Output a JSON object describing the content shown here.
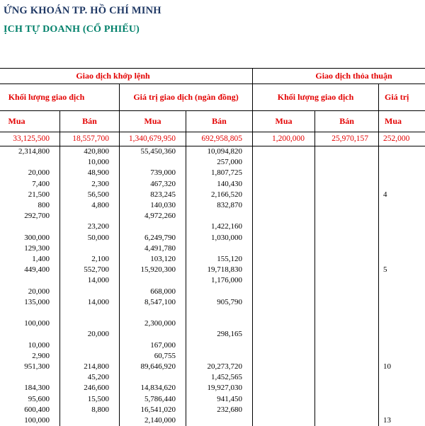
{
  "header": {
    "line1": "ỨNG KHOÁN TP. HỒ CHÍ MINH",
    "line2": "ỊCH TỰ DOANH (CỔ PHIẾU)"
  },
  "colors": {
    "title_navy": "#1f3864",
    "subtitle_teal": "#00806a",
    "table_red": "#e30000"
  },
  "table": {
    "group_headers": [
      "Giao dịch khớp lệnh",
      "Giao dịch thỏa thuận"
    ],
    "sub_headers": [
      "Khối lượng giao dịch",
      "Giá trị giao dịch (ngàn đồng)",
      "Khối lượng giao dịch",
      "Giá trị"
    ],
    "col_headers": [
      "Mua",
      "Bán",
      "Mua",
      "Bán",
      "Mua",
      "Bán",
      "Mua"
    ],
    "summary_row": [
      "33,125,500",
      "18,557,700",
      "1,340,679,950",
      "692,958,805",
      "1,200,000",
      "25,970,157",
      "252,000"
    ],
    "rows": [
      [
        "2,314,800",
        "420,800",
        "55,450,360",
        "10,094,820",
        "",
        "",
        ""
      ],
      [
        "",
        "10,000",
        "",
        "257,000",
        "",
        "",
        ""
      ],
      [
        "20,000",
        "48,900",
        "739,000",
        "1,807,725",
        "",
        "",
        ""
      ],
      [
        "7,400",
        "2,300",
        "467,320",
        "140,430",
        "",
        "",
        ""
      ],
      [
        "21,500",
        "56,500",
        "823,245",
        "2,166,520",
        "",
        "",
        "4"
      ],
      [
        "800",
        "4,800",
        "140,030",
        "832,870",
        "",
        "",
        ""
      ],
      [
        "292,700",
        "",
        "4,972,260",
        "",
        "",
        "",
        ""
      ],
      [
        "",
        "23,200",
        "",
        "1,422,160",
        "",
        "",
        ""
      ],
      [
        "300,000",
        "50,000",
        "6,249,790",
        "1,030,000",
        "",
        "",
        ""
      ],
      [
        "129,300",
        "",
        "4,491,780",
        "",
        "",
        "",
        ""
      ],
      [
        "1,400",
        "2,100",
        "103,120",
        "155,120",
        "",
        "",
        ""
      ],
      [
        "449,400",
        "552,700",
        "15,920,300",
        "19,718,830",
        "",
        "",
        "5"
      ],
      [
        "",
        "14,000",
        "",
        "1,176,000",
        "",
        "",
        ""
      ],
      [
        "20,000",
        "",
        "668,000",
        "",
        "",
        "",
        ""
      ],
      [
        "135,000",
        "14,000",
        "8,547,100",
        "905,790",
        "",
        "",
        ""
      ],
      [
        "",
        "",
        "",
        "",
        "",
        "",
        ""
      ],
      [
        "100,000",
        "",
        "2,300,000",
        "",
        "",
        "",
        ""
      ],
      [
        "",
        "20,000",
        "",
        "298,165",
        "",
        "",
        ""
      ],
      [
        "10,000",
        "",
        "167,000",
        "",
        "",
        "",
        ""
      ],
      [
        "2,900",
        "",
        "60,755",
        "",
        "",
        "",
        ""
      ],
      [
        "951,300",
        "214,800",
        "89,646,920",
        "20,273,720",
        "",
        "",
        "10"
      ],
      [
        "",
        "45,200",
        "",
        "1,452,565",
        "",
        "",
        ""
      ],
      [
        "184,300",
        "246,600",
        "14,834,620",
        "19,927,030",
        "",
        "",
        ""
      ],
      [
        "95,600",
        "15,500",
        "5,786,440",
        "941,450",
        "",
        "",
        ""
      ],
      [
        "600,400",
        "8,800",
        "16,541,020",
        "232,680",
        "",
        "",
        ""
      ],
      [
        "100,000",
        "",
        "2,140,000",
        "",
        "",
        "",
        "13"
      ]
    ]
  }
}
